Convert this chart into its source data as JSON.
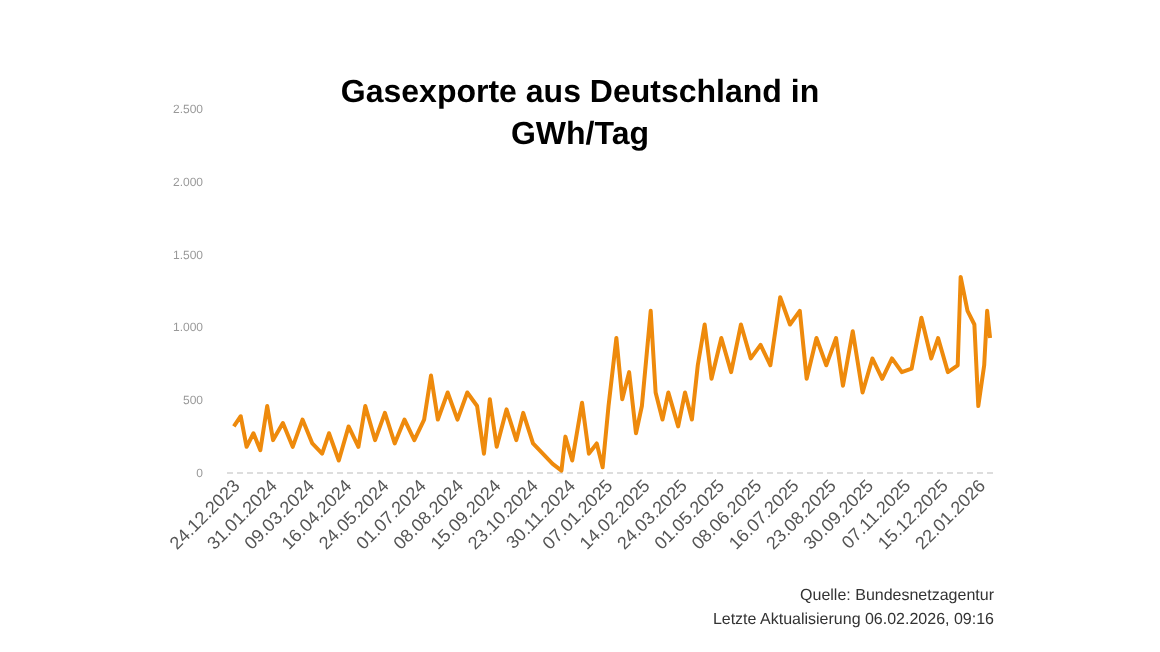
{
  "chart_data": {
    "type": "line",
    "title": "Gasexporte aus Deutschland in GWh/Tag",
    "annotations": [
      "Quelle: Bundesnetzagentur",
      "Letzte Aktualisierung 06.02.2026, 09:16"
    ],
    "x": [
      "2023-12-28",
      "2024-01-04",
      "2024-01-10",
      "2024-01-17",
      "2024-01-24",
      "2024-01-31",
      "2024-02-06",
      "2024-02-16",
      "2024-02-26",
      "2024-03-07",
      "2024-03-17",
      "2024-03-27",
      "2024-04-03",
      "2024-04-13",
      "2024-04-23",
      "2024-05-03",
      "2024-05-10",
      "2024-05-20",
      "2024-05-30",
      "2024-06-09",
      "2024-06-19",
      "2024-06-29",
      "2024-07-09",
      "2024-07-16",
      "2024-07-23",
      "2024-08-02",
      "2024-08-12",
      "2024-08-22",
      "2024-09-01",
      "2024-09-08",
      "2024-09-14",
      "2024-09-21",
      "2024-10-01",
      "2024-10-11",
      "2024-10-18",
      "2024-10-28",
      "2024-11-07",
      "2024-11-17",
      "2024-11-26",
      "2024-11-30",
      "2024-12-07",
      "2024-12-17",
      "2024-12-24",
      "2025-01-01",
      "2025-01-07",
      "2025-01-13",
      "2025-01-21",
      "2025-01-27",
      "2025-02-03",
      "2025-02-10",
      "2025-02-16",
      "2025-02-25",
      "2025-03-02",
      "2025-03-09",
      "2025-03-15",
      "2025-03-25",
      "2025-04-01",
      "2025-04-08",
      "2025-04-14",
      "2025-04-21",
      "2025-04-28",
      "2025-05-08",
      "2025-05-18",
      "2025-05-28",
      "2025-06-07",
      "2025-06-17",
      "2025-06-27",
      "2025-07-07",
      "2025-07-17",
      "2025-07-27",
      "2025-08-03",
      "2025-08-13",
      "2025-08-23",
      "2025-09-02",
      "2025-09-09",
      "2025-09-19",
      "2025-09-29",
      "2025-10-09",
      "2025-10-19",
      "2025-10-29",
      "2025-11-08",
      "2025-11-18",
      "2025-11-28",
      "2025-12-08",
      "2025-12-15",
      "2025-12-25",
      "2026-01-04",
      "2026-01-07",
      "2026-01-14",
      "2026-01-21",
      "2026-01-25",
      "2026-01-31",
      "2026-02-03",
      "2026-02-06"
    ],
    "series": [
      {
        "color": "#ee8a0c",
        "values": [
          313,
          383,
          173,
          266,
          150,
          453,
          219,
          336,
          173,
          360,
          196,
          126,
          266,
          79,
          313,
          173,
          453,
          219,
          406,
          196,
          360,
          219,
          360,
          663,
          360,
          546,
          360,
          546,
          453,
          126,
          500,
          173,
          430,
          219,
          406,
          196,
          126,
          56,
          10,
          243,
          79,
          476,
          126,
          196,
          33,
          453,
          920,
          500,
          686,
          266,
          453,
          1107,
          546,
          360,
          546,
          313,
          546,
          360,
          733,
          1013,
          640,
          920,
          686,
          1013,
          780,
          873,
          733,
          1200,
          1013,
          1107,
          640,
          920,
          733,
          920,
          593,
          967,
          546,
          780,
          640,
          780,
          686,
          710,
          1060,
          780,
          920,
          686,
          733,
          1340,
          1107,
          1013,
          453,
          733,
          1107,
          920
        ]
      }
    ],
    "xlim": [
      "2023-12-20",
      "2026-02-10"
    ],
    "xticks": [
      {
        "value": "2023-12-24",
        "label": "24.12.2023"
      },
      {
        "value": "2024-01-31",
        "label": "31.01.2024"
      },
      {
        "value": "2024-03-09",
        "label": "09.03.2024"
      },
      {
        "value": "2024-04-16",
        "label": "16.04.2024"
      },
      {
        "value": "2024-05-24",
        "label": "24.05.2024"
      },
      {
        "value": "2024-07-01",
        "label": "01.07.2024"
      },
      {
        "value": "2024-08-08",
        "label": "08.08.2024"
      },
      {
        "value": "2024-09-15",
        "label": "15.09.2024"
      },
      {
        "value": "2024-10-23",
        "label": "23.10.2024"
      },
      {
        "value": "2024-11-30",
        "label": "30.11.2024"
      },
      {
        "value": "2025-01-07",
        "label": "07.01.2025"
      },
      {
        "value": "2025-02-14",
        "label": "14.02.2025"
      },
      {
        "value": "2025-03-24",
        "label": "24.03.2025"
      },
      {
        "value": "2025-05-01",
        "label": "01.05.2025"
      },
      {
        "value": "2025-06-08",
        "label": "08.06.2025"
      },
      {
        "value": "2025-07-16",
        "label": "16.07.2025"
      },
      {
        "value": "2025-08-23",
        "label": "23.08.2025"
      },
      {
        "value": "2025-09-30",
        "label": "30.09.2025"
      },
      {
        "value": "2025-11-07",
        "label": "07.11.2025"
      },
      {
        "value": "2025-12-15",
        "label": "15.12.2025"
      },
      {
        "value": "2026-01-22",
        "label": "22.01.2026"
      }
    ],
    "ylim": [
      0,
      2500
    ],
    "yticks": [
      0,
      500,
      {
        "value": 1000,
        "label": "1.000"
      },
      {
        "value": 1500,
        "label": "1.500"
      },
      {
        "value": 2000,
        "label": "2.000"
      },
      {
        "value": 2500,
        "label": "2.500"
      }
    ],
    "marker": "none",
    "line_style": "solid",
    "grid": false
  }
}
